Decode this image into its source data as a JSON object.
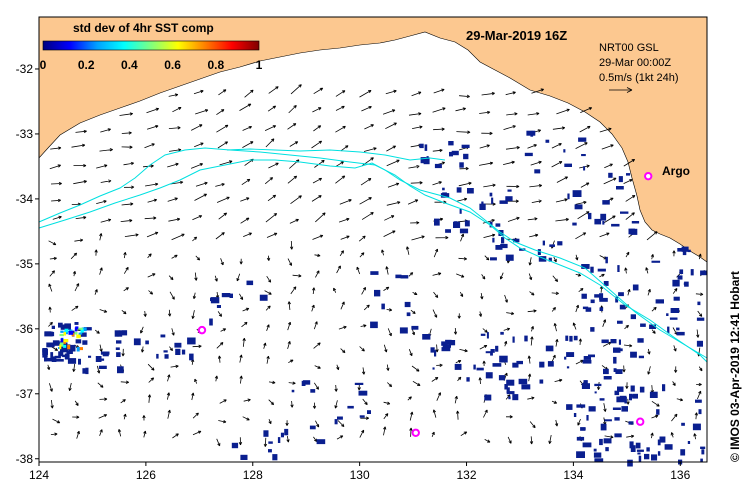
{
  "title": "29-Mar-2019 16Z",
  "colorbar": {
    "title": "std dev of 4hr SST comp",
    "ticks": [
      "0",
      "0.2",
      "0.4",
      "0.6",
      "0.8",
      "1"
    ],
    "colors": [
      "#00007f",
      "#0000ff",
      "#00a0ff",
      "#00ffff",
      "#7fff7f",
      "#ffff00",
      "#ff8000",
      "#ff0000",
      "#7f0000"
    ]
  },
  "currents_info": {
    "line1": "NRT00 GSL",
    "line2": "29-Mar 00:00Z",
    "line3": "0.5m/s (1kt 24h)"
  },
  "argo_label": "Argo",
  "credit": "© IMOS 03-Apr-2019 12:41 Hobart",
  "axes": {
    "lon_ticks": [
      "124",
      "126",
      "128",
      "130",
      "132",
      "134",
      "136"
    ],
    "lat_ticks": [
      "-32",
      "-33",
      "-34",
      "-35",
      "-36",
      "-37",
      "-38"
    ],
    "xlim": [
      124,
      136.5
    ],
    "ylim": [
      -38.05,
      -31.2
    ]
  },
  "argo_floats": [
    {
      "lon": 135.4,
      "lat": -33.65
    },
    {
      "lon": 127.05,
      "lat": -36.02
    },
    {
      "lon": 131.05,
      "lat": -37.6
    },
    {
      "lon": 135.25,
      "lat": -37.43
    }
  ],
  "colors": {
    "land": "#fcc890",
    "coast_contour": "#00e0e0",
    "argo": "#ff00ff",
    "patches": "#0a1f8f"
  }
}
